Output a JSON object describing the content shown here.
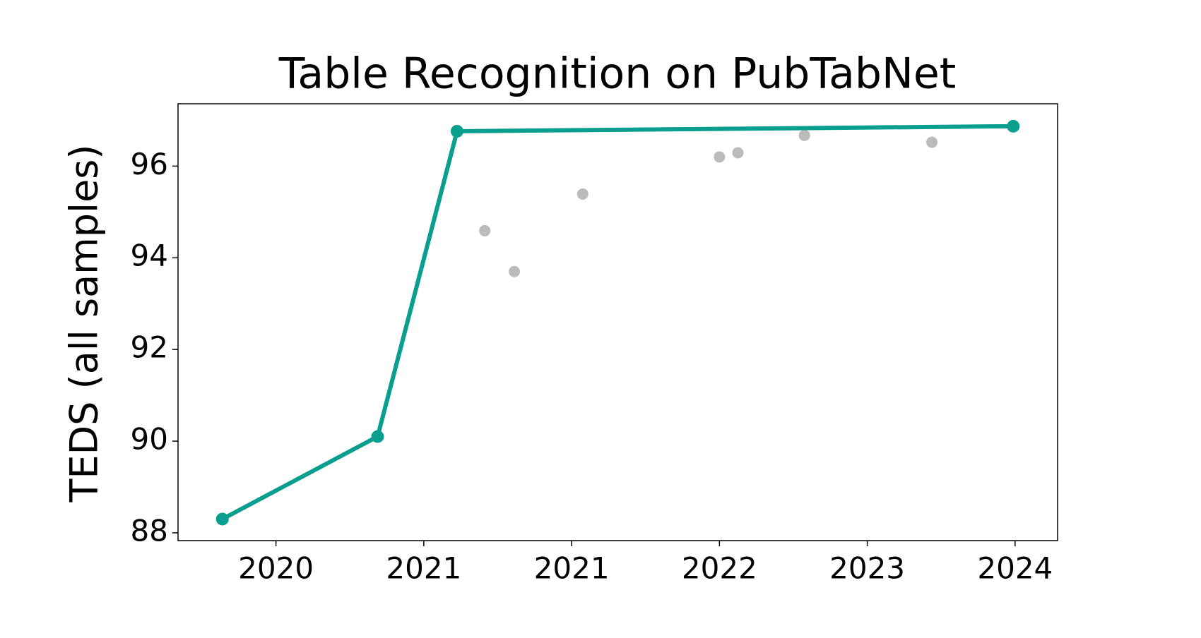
{
  "chart_data": {
    "type": "line",
    "title": "Table Recognition on PubTabNet",
    "ylabel": "TEDS (all samples)",
    "xlim": [
      2019.67,
      2024.43
    ],
    "xticks": [
      {
        "value": 2020.2,
        "label": "2020"
      },
      {
        "value": 2021.0,
        "label": "2021"
      },
      {
        "value": 2021.8,
        "label": "2021"
      },
      {
        "value": 2022.6,
        "label": "2022"
      },
      {
        "value": 2023.4,
        "label": "2023"
      },
      {
        "value": 2024.2,
        "label": "2024"
      }
    ],
    "ylim": [
      87.83,
      97.36
    ],
    "yticks": [
      88,
      90,
      92,
      94,
      96
    ],
    "grid": false,
    "series": [
      {
        "type": "line",
        "color": "#0a9e8f",
        "x": [
          2019.91,
          2020.75,
          2021.18,
          2024.19
        ],
        "values": [
          88.3,
          90.1,
          96.76,
          96.87
        ]
      },
      {
        "type": "scatter",
        "color": "#bbbbbb",
        "x": [
          2021.33,
          2021.49,
          2021.86,
          2022.6,
          2022.7,
          2023.06,
          2023.75
        ],
        "values": [
          94.59,
          93.7,
          95.39,
          96.2,
          96.29,
          96.67,
          96.52
        ]
      }
    ]
  }
}
